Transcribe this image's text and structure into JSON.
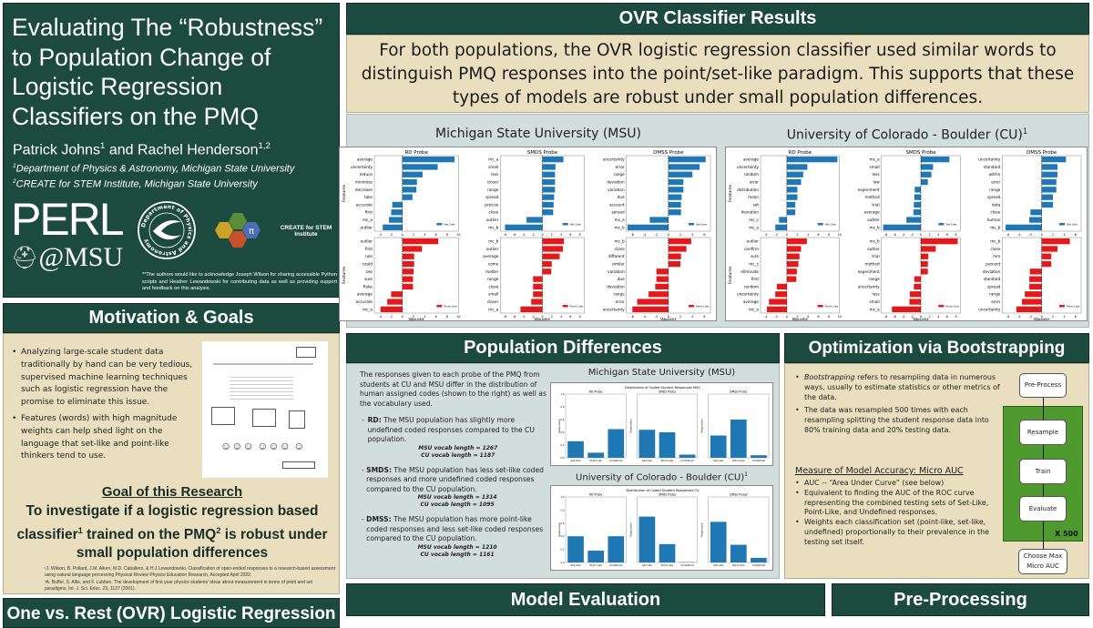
{
  "title_panel": {
    "title": "Evaluating The “Robustness” to Population Change of Logistic Regression Classifiers on the PMQ",
    "author1": "Patrick Johns",
    "author1_sup": "1",
    "and": "and",
    "author2": "Rachel Henderson",
    "author2_sup": "1,2",
    "affiliation1_sup": "1",
    "affiliation1": "Department of Physics & Astronomy, Michigan State University",
    "affiliation2_sup": "2",
    "affiliation2": "CREATE for STEM Institute, Michigan State University",
    "logo_perl": "PERL",
    "logo_msu": "@MSU",
    "logo_seal": "Department of Physics and Astronomy",
    "logo_create": "CREATE for STEM Institute",
    "acknowledgement": "**The authors would like to acknowledge Joseph Wilson for sharing accessible Python scripts and Heather Lewandowski for contributing data as well as providing support and feedback on this analysis."
  },
  "motivation": {
    "header": "Motivation & Goals",
    "bullets": [
      "Analyzing large-scale student data traditionally by hand can be very tedious, supervised machine learning techniques such as logistic regression have the promise to eliminate this issue.",
      "Features (words) with high magnitude weights can help shed light on the language that set-like and point-like thinkers tend to use."
    ],
    "goal_heading": "Goal of this Research",
    "goal_part1": "To investigate if a logistic regression based classifier",
    "goal_sup1": "1",
    "goal_part2": " trained on the PMQ",
    "goal_sup2": "2",
    "goal_part3": " is robust under small population differences",
    "ref1": "¹J. Wilson, B. Pollard, J.M. Aiken, M.D. Caballero, & H.J Lewandowski. Classification of open-ended responses to a research-based assessment using natural language processing Physical Review Physics Education Research, Accepted April 2022.",
    "ref2": "²A. Buffer, S. Allie, and F. Lubben. The development of first year physics students' ideas about measurement in terms of point and set paradigms, Int. J. Sci. Educ. 23, 1137 (2001)."
  },
  "ovr_left_header": "One vs. Rest (OVR) Logistic Regression",
  "ovr_results": {
    "header": "OVR Classifier Results",
    "summary": "For both populations, the OVR logistic regression classifier used similar words to distinguish PMQ responses into the point/set-like paradigm. This supports that these types of models are robust under small population differences.",
    "msu_title": "Michigan State University (MSU)",
    "cu_title": "University of Colorado - Boulder (CU)",
    "cu_sup": "1"
  },
  "population": {
    "header": "Population Differences",
    "intro": "The responses given to each probe of the PMQ from students at CU and MSU differ in the distribution of human assigned codes (shown to the right) as well as the vocabulary used.",
    "items": [
      {
        "probe": "RD:",
        "text": "The MSU population has slightly more undefined coded responses compared to the CU population.",
        "msu_vocab": "MSU vocab length = 1267",
        "cu_vocab": "CU vocab length = 1187"
      },
      {
        "probe": "SMDS:",
        "text": "The MSU population has less set-like coded responses and more undefined coded responses compared to the CU population.",
        "msu_vocab": "MSU vocab length = 1314",
        "cu_vocab": "CU vocab length = 1095"
      },
      {
        "probe": "DMSS:",
        "text": "The MSU population has more point-like coded responses and less set-like coded responses compared to the CU population.",
        "msu_vocab": "MSU vocab length = 1210",
        "cu_vocab": "CU vocab length = 1161"
      }
    ],
    "msu_title": "Michigan State University (MSU)",
    "cu_title": "University of Colorado - Boulder (CU)",
    "cu_sup": "1"
  },
  "optimization": {
    "header": "Optimization via Bootstrapping",
    "bullet1_em": "Bootstrapping",
    "bullet1_rest": " refers to resampling data in numerous ways, usually to estimate statistics or other metrics of the data.",
    "bullet2": "The data was resampled 500 times with each resampling splitting the student response data into 80% training data and 20% testing data.",
    "measure_heading": "Measure of Model Accuracy: Micro AUC",
    "measure_bullets": [
      "AUC -- “Area Under Curve” (see below)",
      "Equivalent to finding the AUC of the ROC curve representing the combined testing sets of Set-Like, Point-Like, and Undefined responses.",
      "Weights each classification set (point-like, set-like, undefined) proportionally to their prevalence in the testing set itself."
    ],
    "flow": {
      "preprocess": "Pre-Process",
      "resample": "Resample",
      "train": "Train",
      "evaluate": "Evaluate",
      "repeat": "X 500",
      "choose": "Choose Max Micro AUC"
    }
  },
  "model_evaluation_header": "Model Evaluation",
  "preprocessing_header": "Pre-Processing",
  "colors": {
    "dark_green": "#1d4a3e",
    "beige": "#e9dfbe",
    "gray": "#d2dedb",
    "set_like": "#1f77b4",
    "point_like": "#e31a1c",
    "flow_green": "#4e9a2e"
  },
  "chart_data": [
    {
      "type": "bar",
      "orientation": "horizontal",
      "id": "msu_weights",
      "xlabel": "Weight",
      "ylabel": "Features",
      "panels": [
        {
          "title": "RD Probe",
          "legend": "Set Like",
          "xlim": [
            -5,
            10
          ],
          "xticks": [
            -4,
            -2,
            0,
            2,
            4,
            6,
            8,
            10
          ],
          "features": [
            "average",
            "uncertainty",
            "reduce",
            "minimize",
            "decrease",
            "take",
            "accurate",
            "first",
            "mc_a",
            "outlier"
          ],
          "values": [
            9.3,
            6.3,
            3.6,
            2.6,
            2.5,
            1.8,
            -1.8,
            -2.0,
            -2.4,
            -3.5
          ]
        },
        {
          "title": "SMDS Probe",
          "legend": "Set Like",
          "xlim": [
            -9,
            9
          ],
          "xticks": [
            -8,
            -6,
            -4,
            -2,
            0,
            2,
            4,
            6,
            8
          ],
          "features": [
            "mc_a",
            "small",
            "less",
            "closer",
            "range",
            "spread",
            "precise",
            "close",
            "outlier",
            "mc_b"
          ],
          "values": [
            4.5,
            2.8,
            2.7,
            2.7,
            2.7,
            2.5,
            2.4,
            2.3,
            -3.4,
            -8.0
          ]
        },
        {
          "title": "DMSS Probe",
          "legend": "Set Like",
          "xlim": [
            -7,
            7
          ],
          "xticks": [
            -6,
            -4,
            -2,
            0,
            2,
            4,
            6
          ],
          "features": [
            "uncertainty",
            "error",
            "range",
            "deviation",
            "variation",
            "due",
            "account",
            "spread",
            "mc_a",
            "mc_b"
          ],
          "values": [
            6.2,
            5.2,
            4.0,
            2.5,
            2.5,
            2.2,
            2.1,
            2.1,
            -3.1,
            -6.8
          ]
        },
        {
          "title": "",
          "legend": "Point Like",
          "xlim": [
            -5,
            10
          ],
          "xticks": [
            -4,
            -2,
            0,
            2,
            4,
            6,
            8,
            10
          ],
          "features": [
            "outlier",
            "first",
            "rule",
            "could",
            "see",
            "sure",
            "fluke",
            "average",
            "accurate",
            "mc_a"
          ],
          "values": [
            6.4,
            3.5,
            2.1,
            2.1,
            2.0,
            1.9,
            1.9,
            -2.0,
            -2.7,
            -3.9
          ]
        },
        {
          "title": "",
          "legend": "Point Like",
          "xlim": [
            -9,
            9
          ],
          "xticks": [
            -8,
            -6,
            -4,
            -2,
            0,
            2,
            4,
            6,
            8
          ],
          "features": [
            "mc_b",
            "outlier",
            "average",
            "come",
            "matter",
            "range",
            "close",
            "small",
            "closer",
            "mc_a"
          ],
          "values": [
            4.6,
            4.4,
            3.7,
            2.0,
            1.9,
            -2.0,
            -2.0,
            -2.0,
            -2.4,
            -4.7
          ]
        },
        {
          "title": "",
          "legend": "Point Like",
          "xlim": [
            -7,
            7
          ],
          "xticks": [
            -6,
            -4,
            -2,
            0,
            2,
            4,
            6
          ],
          "features": [
            "mc_b",
            "close",
            "different",
            "similar",
            "variation",
            "due",
            "deviation",
            "range",
            "error",
            "uncertainty"
          ],
          "values": [
            3.8,
            3.0,
            2.1,
            2.0,
            -2.0,
            -2.0,
            -2.2,
            -3.3,
            -5.2,
            -6.0
          ]
        }
      ]
    },
    {
      "type": "bar",
      "orientation": "horizontal",
      "id": "cu_weights",
      "xlabel": "Weight",
      "ylabel": "Features",
      "panels": [
        {
          "title": "RD Probe",
          "legend": "Set Like",
          "xlim": [
            -5,
            10
          ],
          "xticks": [
            -4,
            -2,
            0,
            2,
            4,
            6,
            8,
            10
          ],
          "features": [
            "average",
            "uncertainty",
            "random",
            "error",
            "distribution",
            "mean",
            "set",
            "deviation",
            "mc_c",
            "mc_a"
          ],
          "values": [
            9.6,
            3.9,
            3.1,
            2.7,
            2.0,
            2.0,
            1.6,
            1.6,
            -1.5,
            -2.2
          ]
        },
        {
          "title": "SMDS Probe",
          "legend": "Set Like",
          "xlim": [
            -9,
            9
          ],
          "xticks": [
            -8,
            -6,
            -4,
            -2,
            0,
            2,
            4,
            6,
            8
          ],
          "features": [
            "mc_a",
            "small",
            "less",
            "low",
            "experiment",
            "method",
            "trial",
            "average",
            "outlier",
            "mc_b"
          ],
          "values": [
            6.5,
            2.8,
            2.4,
            1.6,
            -1.4,
            -1.5,
            -1.6,
            -1.7,
            -3.3,
            -8.6
          ]
        },
        {
          "title": "DMSS Probe",
          "legend": "Set Like",
          "xlim": [
            -7,
            7
          ],
          "xticks": [
            -6,
            -4,
            -2,
            0,
            2,
            4,
            6
          ],
          "features": [
            "uncertainty",
            "standard",
            "within",
            "error",
            "range",
            "spread",
            "data",
            "close",
            "human",
            "mc_b"
          ],
          "values": [
            4.3,
            2.8,
            2.8,
            2.6,
            2.6,
            2.0,
            2.0,
            -2.0,
            -2.2,
            -6.4
          ]
        },
        {
          "title": "",
          "legend": "Point Like",
          "xlim": [
            -5,
            10
          ],
          "xticks": [
            -4,
            -2,
            0,
            2,
            4,
            6,
            8,
            10
          ],
          "features": [
            "outlier",
            "confirm",
            "sure",
            "mc_c",
            "eliminate",
            "first",
            "random",
            "uncertainty",
            "average",
            "mc_a"
          ],
          "values": [
            3.8,
            2.7,
            2.4,
            2.2,
            1.9,
            1.8,
            -1.9,
            -2.2,
            -3.4,
            -3.8
          ]
        },
        {
          "title": "",
          "legend": "Point Like",
          "xlim": [
            -9,
            9
          ],
          "xticks": [
            -8,
            -6,
            -4,
            -2,
            0,
            2,
            4,
            6,
            8
          ],
          "features": [
            "mc_b",
            "outlier",
            "trial",
            "method",
            "experiment",
            "range",
            "uncertainty",
            "less",
            "small",
            "mc_a"
          ],
          "values": [
            8.4,
            3.4,
            1.7,
            1.6,
            1.6,
            -1.5,
            -1.6,
            -2.5,
            -2.6,
            -6.6
          ]
        },
        {
          "title": "",
          "legend": "Point Like",
          "xlim": [
            -7,
            7
          ],
          "xticks": [
            -6,
            -4,
            -2,
            0,
            2,
            4,
            6
          ],
          "features": [
            "mc_b",
            "close",
            "mm",
            "percent",
            "deviation",
            "standard",
            "spread",
            "range",
            "error",
            "uncertainty"
          ],
          "values": [
            5.0,
            2.8,
            1.7,
            1.7,
            -2.1,
            -2.2,
            -2.2,
            -3.0,
            -3.5,
            -4.5
          ]
        }
      ]
    },
    {
      "type": "bar",
      "id": "msu_distribution",
      "title": "Distribution of Coded Student Responses MSU",
      "ylabel": "Responses",
      "ylim": [
        0,
        1.0
      ],
      "categories": [
        "Set Like",
        "Point Like",
        "Undefined"
      ],
      "panels": [
        {
          "title": "RD Probe",
          "values": [
            0.26,
            0.08,
            0.45
          ]
        },
        {
          "title": "SMDS Probe",
          "values": [
            0.44,
            0.4,
            0.05
          ]
        },
        {
          "title": "DMSS Probe",
          "values": [
            0.35,
            0.6,
            0.04
          ]
        }
      ]
    },
    {
      "type": "bar",
      "id": "cu_distribution",
      "title": "Distribution of Coded Student Responses CU",
      "ylabel": "Responses",
      "ylim": [
        0,
        1.0
      ],
      "categories": [
        "Set Like",
        "Point Like",
        "Undefined"
      ],
      "panels": [
        {
          "title": "RD Probe",
          "values": [
            0.4,
            0.18,
            0.4
          ]
        },
        {
          "title": "SMDS Probe",
          "values": [
            0.7,
            0.28,
            0.005
          ]
        },
        {
          "title": "DMSS Probe",
          "values": [
            0.62,
            0.27,
            0.07
          ]
        }
      ]
    }
  ]
}
